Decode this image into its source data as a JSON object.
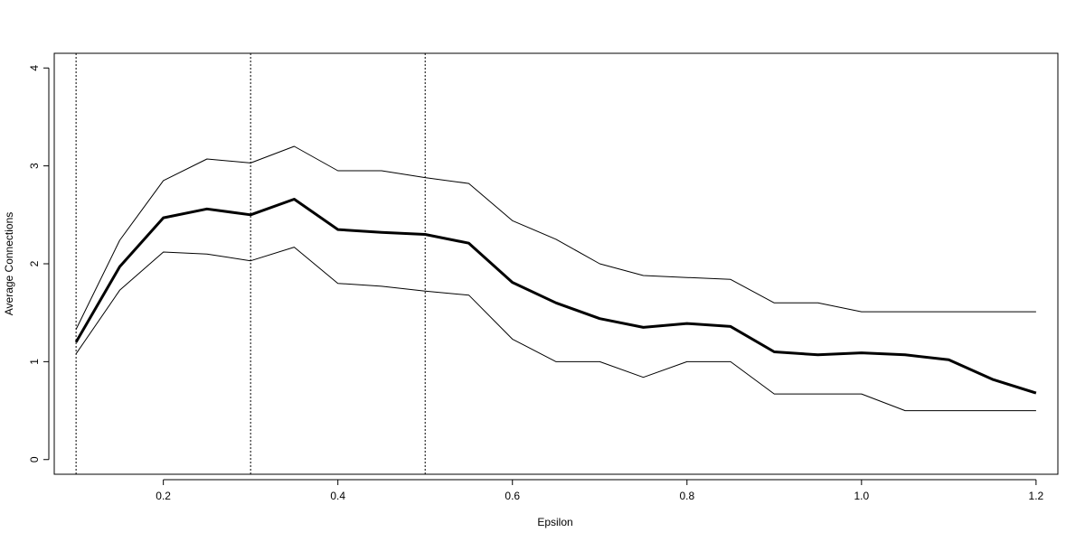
{
  "chart_data": {
    "type": "line",
    "title": "",
    "xlabel": "Epsilon",
    "ylabel": "Average Connections",
    "xlim": [
      0.075,
      1.225
    ],
    "ylim": [
      -0.15,
      4.15
    ],
    "grid": false,
    "legend": "none",
    "x": [
      0.1,
      0.15,
      0.2,
      0.25,
      0.3,
      0.35,
      0.4,
      0.45,
      0.5,
      0.55,
      0.6,
      0.65,
      0.7,
      0.75,
      0.8,
      0.85,
      0.9,
      0.95,
      1.0,
      1.05,
      1.1,
      1.15,
      1.2
    ],
    "x_ticks": [
      0.2,
      0.4,
      0.6,
      0.8,
      1.0,
      1.2
    ],
    "x_tick_labels": [
      "0.2",
      "0.4",
      "0.6",
      "0.8",
      "1.0",
      "1.2"
    ],
    "y_ticks": [
      0,
      1,
      2,
      3,
      4
    ],
    "y_tick_labels": [
      "0",
      "1",
      "2",
      "3",
      "4"
    ],
    "vlines": [
      0.1,
      0.3,
      0.5
    ],
    "series": [
      {
        "role": "mean",
        "color": "#000000",
        "values": [
          1.2,
          1.97,
          2.47,
          2.56,
          2.5,
          2.66,
          2.35,
          2.32,
          2.3,
          2.21,
          1.81,
          1.6,
          1.44,
          1.35,
          1.39,
          1.36,
          1.1,
          1.07,
          1.09,
          1.07,
          1.02,
          0.82,
          0.68
        ]
      },
      {
        "role": "upper",
        "color": "#000000",
        "values": [
          1.33,
          2.24,
          2.85,
          3.07,
          3.03,
          3.2,
          2.95,
          2.95,
          2.88,
          2.82,
          2.44,
          2.25,
          2.0,
          1.88,
          1.86,
          1.84,
          1.6,
          1.6,
          1.51,
          1.51,
          1.51,
          1.51,
          1.51
        ]
      },
      {
        "role": "lower",
        "color": "#000000",
        "values": [
          1.08,
          1.73,
          2.12,
          2.1,
          2.03,
          2.17,
          1.8,
          1.77,
          1.72,
          1.68,
          1.23,
          1.0,
          1.0,
          0.84,
          1.0,
          1.0,
          0.67,
          0.67,
          0.67,
          0.5,
          0.5,
          0.5,
          0.5
        ]
      }
    ]
  }
}
